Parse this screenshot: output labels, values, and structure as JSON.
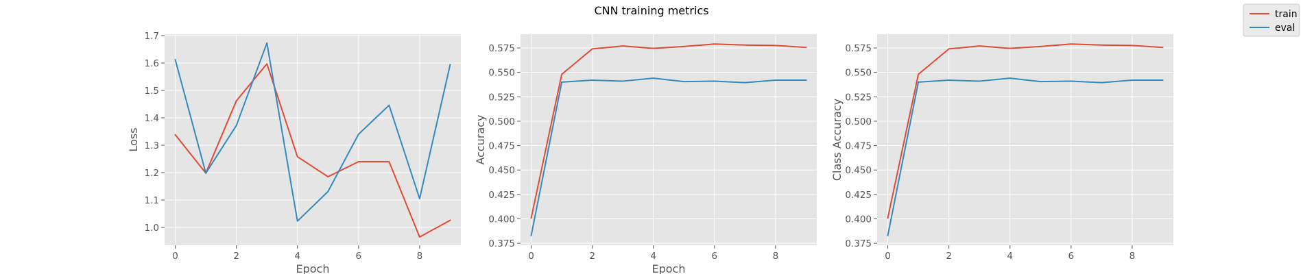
{
  "figure": {
    "title": "CNN training metrics",
    "legend": {
      "placement": "top-right",
      "entries": [
        {
          "name": "train",
          "color": "#E24A33"
        },
        {
          "name": "eval",
          "color": "#348ABD"
        }
      ]
    }
  },
  "chart_data": [
    {
      "type": "line",
      "xlabel": "Epoch",
      "ylabel": "Loss",
      "xlim": [
        -0.35,
        9.35
      ],
      "ylim": [
        0.935,
        1.705
      ],
      "xticks": [
        0,
        2,
        4,
        6,
        8
      ],
      "yticks": [
        1.0,
        1.1,
        1.2,
        1.3,
        1.4,
        1.5,
        1.6,
        1.7
      ],
      "ytick_labels": [
        "1.0",
        "1.1",
        "1.2",
        "1.3",
        "1.4",
        "1.5",
        "1.6",
        "1.7"
      ],
      "grid": true,
      "x": [
        0,
        1,
        2,
        3,
        4,
        5,
        6,
        7,
        8,
        9
      ],
      "series": [
        {
          "name": "train",
          "color": "#E24A33",
          "values": [
            1.338,
            1.198,
            1.462,
            1.597,
            1.258,
            1.185,
            1.24,
            1.24,
            0.965,
            1.026
          ]
        },
        {
          "name": "eval",
          "color": "#348ABD",
          "values": [
            1.612,
            1.198,
            1.372,
            1.673,
            1.023,
            1.131,
            1.34,
            1.446,
            1.105,
            1.594
          ]
        }
      ]
    },
    {
      "type": "line",
      "xlabel": "Epoch",
      "ylabel": "Accuracy",
      "xlim": [
        -0.35,
        9.35
      ],
      "ylim": [
        0.373,
        0.589
      ],
      "xticks": [
        0,
        2,
        4,
        6,
        8
      ],
      "yticks": [
        0.375,
        0.4,
        0.425,
        0.45,
        0.475,
        0.5,
        0.525,
        0.55,
        0.575
      ],
      "ytick_labels": [
        "0.375",
        "0.400",
        "0.425",
        "0.450",
        "0.475",
        "0.500",
        "0.525",
        "0.550",
        "0.575"
      ],
      "grid": true,
      "x": [
        0,
        1,
        2,
        3,
        4,
        5,
        6,
        7,
        8,
        9
      ],
      "series": [
        {
          "name": "train",
          "color": "#E24A33",
          "values": [
            0.401,
            0.548,
            0.574,
            0.577,
            0.5745,
            0.5765,
            0.579,
            0.578,
            0.5775,
            0.5755
          ]
        },
        {
          "name": "eval",
          "color": "#348ABD",
          "values": [
            0.383,
            0.54,
            0.542,
            0.541,
            0.544,
            0.5405,
            0.541,
            0.5395,
            0.542,
            0.542
          ]
        }
      ]
    },
    {
      "type": "line",
      "xlabel": "",
      "ylabel": "Class Accuracy",
      "xlim": [
        -0.35,
        9.35
      ],
      "ylim": [
        0.373,
        0.589
      ],
      "xticks": [
        0,
        2,
        4,
        6,
        8
      ],
      "yticks": [
        0.375,
        0.4,
        0.425,
        0.45,
        0.475,
        0.5,
        0.525,
        0.55,
        0.575
      ],
      "ytick_labels": [
        "0.375",
        "0.400",
        "0.425",
        "0.450",
        "0.475",
        "0.500",
        "0.525",
        "0.550",
        "0.575"
      ],
      "grid": true,
      "x": [
        0,
        1,
        2,
        3,
        4,
        5,
        6,
        7,
        8,
        9
      ],
      "series": [
        {
          "name": "train",
          "color": "#E24A33",
          "values": [
            0.401,
            0.548,
            0.574,
            0.577,
            0.5745,
            0.5765,
            0.579,
            0.578,
            0.5775,
            0.5755
          ]
        },
        {
          "name": "eval",
          "color": "#348ABD",
          "values": [
            0.383,
            0.54,
            0.542,
            0.541,
            0.544,
            0.5405,
            0.541,
            0.5395,
            0.542,
            0.542
          ]
        }
      ]
    }
  ]
}
